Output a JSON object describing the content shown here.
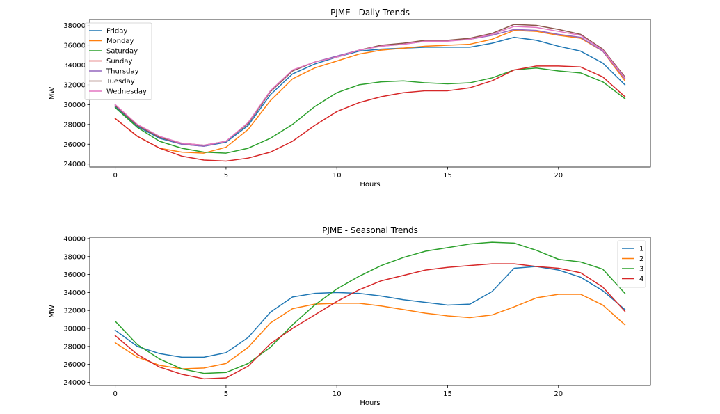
{
  "chart_data": [
    {
      "type": "line",
      "title": "PJME - Daily Trends",
      "xlabel": "Hours",
      "ylabel": "MW",
      "xlim": [
        -1.15,
        24.15
      ],
      "ylim": [
        23700,
        38600
      ],
      "xticks": [
        0,
        5,
        10,
        15,
        20
      ],
      "yticks": [
        24000,
        26000,
        28000,
        30000,
        32000,
        34000,
        36000,
        38000
      ],
      "grid": false,
      "legend_position": "top-left",
      "x": [
        0,
        1,
        2,
        3,
        4,
        5,
        6,
        7,
        8,
        9,
        10,
        11,
        12,
        13,
        14,
        15,
        16,
        17,
        18,
        19,
        20,
        21,
        22,
        23
      ],
      "series": [
        {
          "name": "Friday",
          "color": "#1f77b4",
          "values": [
            29800,
            27800,
            26600,
            26000,
            25800,
            26200,
            27900,
            31000,
            33100,
            34100,
            34800,
            35400,
            35600,
            35700,
            35800,
            35800,
            35800,
            36200,
            36800,
            36500,
            35900,
            35400,
            34200,
            32000
          ]
        },
        {
          "name": "Monday",
          "color": "#ff7f0e",
          "values": [
            28600,
            26800,
            25600,
            25200,
            25100,
            25700,
            27500,
            30400,
            32600,
            33700,
            34400,
            35100,
            35500,
            35700,
            35900,
            36000,
            36100,
            36600,
            37500,
            37400,
            37000,
            36700,
            35400,
            32400
          ]
        },
        {
          "name": "Saturday",
          "color": "#2ca02c",
          "values": [
            29700,
            27700,
            26300,
            25600,
            25200,
            25100,
            25600,
            26600,
            28000,
            29800,
            31200,
            32000,
            32300,
            32400,
            32200,
            32100,
            32200,
            32700,
            33500,
            33700,
            33400,
            33200,
            32300,
            30600
          ]
        },
        {
          "name": "Sunday",
          "color": "#d62728",
          "values": [
            28600,
            26800,
            25600,
            24800,
            24400,
            24300,
            24600,
            25200,
            26300,
            27900,
            29300,
            30200,
            30800,
            31200,
            31400,
            31400,
            31700,
            32400,
            33500,
            33900,
            33900,
            33800,
            32800,
            30800
          ]
        },
        {
          "name": "Thursday",
          "color": "#9467bd",
          "values": [
            30000,
            27900,
            26700,
            26000,
            25800,
            26300,
            28100,
            31300,
            33400,
            34300,
            34900,
            35500,
            35900,
            36100,
            36400,
            36500,
            36600,
            37000,
            37600,
            37500,
            37100,
            36800,
            35400,
            32600
          ]
        },
        {
          "name": "Tuesday",
          "color": "#8c564b",
          "values": [
            29900,
            27900,
            26700,
            26100,
            25900,
            26300,
            28100,
            31300,
            33400,
            34300,
            34800,
            35500,
            36000,
            36200,
            36500,
            36500,
            36700,
            37200,
            38100,
            38000,
            37600,
            37100,
            35600,
            32800
          ]
        },
        {
          "name": "Wednesday",
          "color": "#e377c2",
          "values": [
            30000,
            28000,
            26800,
            26100,
            25900,
            26300,
            28200,
            31400,
            33500,
            34300,
            34800,
            35500,
            35900,
            36100,
            36400,
            36400,
            36600,
            37100,
            37900,
            37800,
            37400,
            37000,
            35500,
            32700
          ]
        }
      ]
    },
    {
      "type": "line",
      "title": "PJME - Seasonal Trends",
      "xlabel": "Hours",
      "ylabel": "MW",
      "xlim": [
        -1.15,
        24.15
      ],
      "ylim": [
        23650,
        40150
      ],
      "xticks": [
        0,
        5,
        10,
        15,
        20
      ],
      "yticks": [
        24000,
        26000,
        28000,
        30000,
        32000,
        34000,
        36000,
        38000,
        40000
      ],
      "grid": false,
      "legend_position": "top-right",
      "x": [
        0,
        1,
        2,
        3,
        4,
        5,
        6,
        7,
        8,
        9,
        10,
        11,
        12,
        13,
        14,
        15,
        16,
        17,
        18,
        19,
        20,
        21,
        22,
        23
      ],
      "series": [
        {
          "name": "1",
          "color": "#1f77b4",
          "values": [
            29800,
            28000,
            27200,
            26800,
            26800,
            27300,
            29000,
            31800,
            33500,
            33900,
            34000,
            33900,
            33600,
            33200,
            32900,
            32600,
            32700,
            34100,
            36700,
            36900,
            36500,
            35700,
            34200,
            32100
          ]
        },
        {
          "name": "2",
          "color": "#ff7f0e",
          "values": [
            28400,
            26800,
            25900,
            25500,
            25600,
            26100,
            27900,
            30600,
            32200,
            32700,
            32800,
            32800,
            32500,
            32100,
            31700,
            31400,
            31200,
            31500,
            32400,
            33400,
            33800,
            33800,
            32600,
            30400
          ]
        },
        {
          "name": "3",
          "color": "#2ca02c",
          "values": [
            30800,
            28200,
            26600,
            25500,
            25000,
            25100,
            26100,
            27900,
            30400,
            32600,
            34400,
            35800,
            37000,
            37900,
            38600,
            39000,
            39400,
            39600,
            39500,
            38700,
            37700,
            37400,
            36600,
            33900
          ]
        },
        {
          "name": "4",
          "color": "#d62728",
          "values": [
            29200,
            27100,
            25700,
            24900,
            24400,
            24500,
            25800,
            28300,
            30000,
            31500,
            33000,
            34300,
            35300,
            35900,
            36500,
            36800,
            37000,
            37200,
            37200,
            36900,
            36700,
            36200,
            34600,
            31900
          ]
        }
      ]
    }
  ]
}
